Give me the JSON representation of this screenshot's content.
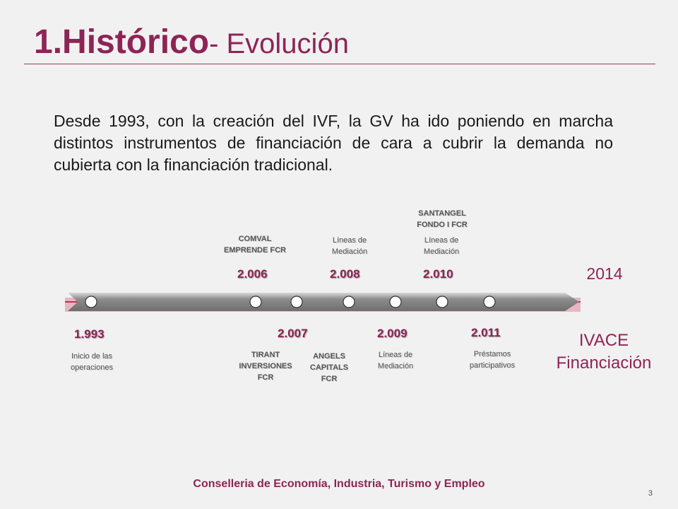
{
  "slide": {
    "title_main": "1.Histórico",
    "title_sub": "- Evolución",
    "intro": "Desde 1993, con la creación del IVF, la GV ha ido poniendo en marcha distintos instrumentos de financiación de cara a cubrir la demanda no cubierta con la financiación tradicional.",
    "footer": "Conselleria de Economía, Industria, Turismo y Empleo",
    "page_number": "3"
  },
  "timeline": {
    "years_below": [
      "1.993",
      "2.007",
      "2.009",
      "2.011"
    ],
    "years_above": [
      "2.006",
      "2.008",
      "2.010"
    ],
    "labels": {
      "inicio": "Inicio   de las\noperaciones",
      "comval": "COMVAL\nEMPRENDE FCR",
      "tirant": "TIRANT\nINVERSIONES\nFCR",
      "angels": "ANGELS\nCAPITALS\nFCR",
      "lineas_2008": "Líneas de\nMediación",
      "lineas_2009": "Líneas de\nMediación",
      "santangel": "SANTANGEL\nFONDO I FCR",
      "lineas_2010": "Líneas de\nMediación",
      "prestamos": "Préstamos\nparticipativos"
    },
    "end_year": "2014",
    "end_label": "IVACE\nFinanciación",
    "colors": {
      "accent": "#8e2456",
      "bar": "#7a7a7a",
      "bar_edge": "#c0354f"
    }
  }
}
